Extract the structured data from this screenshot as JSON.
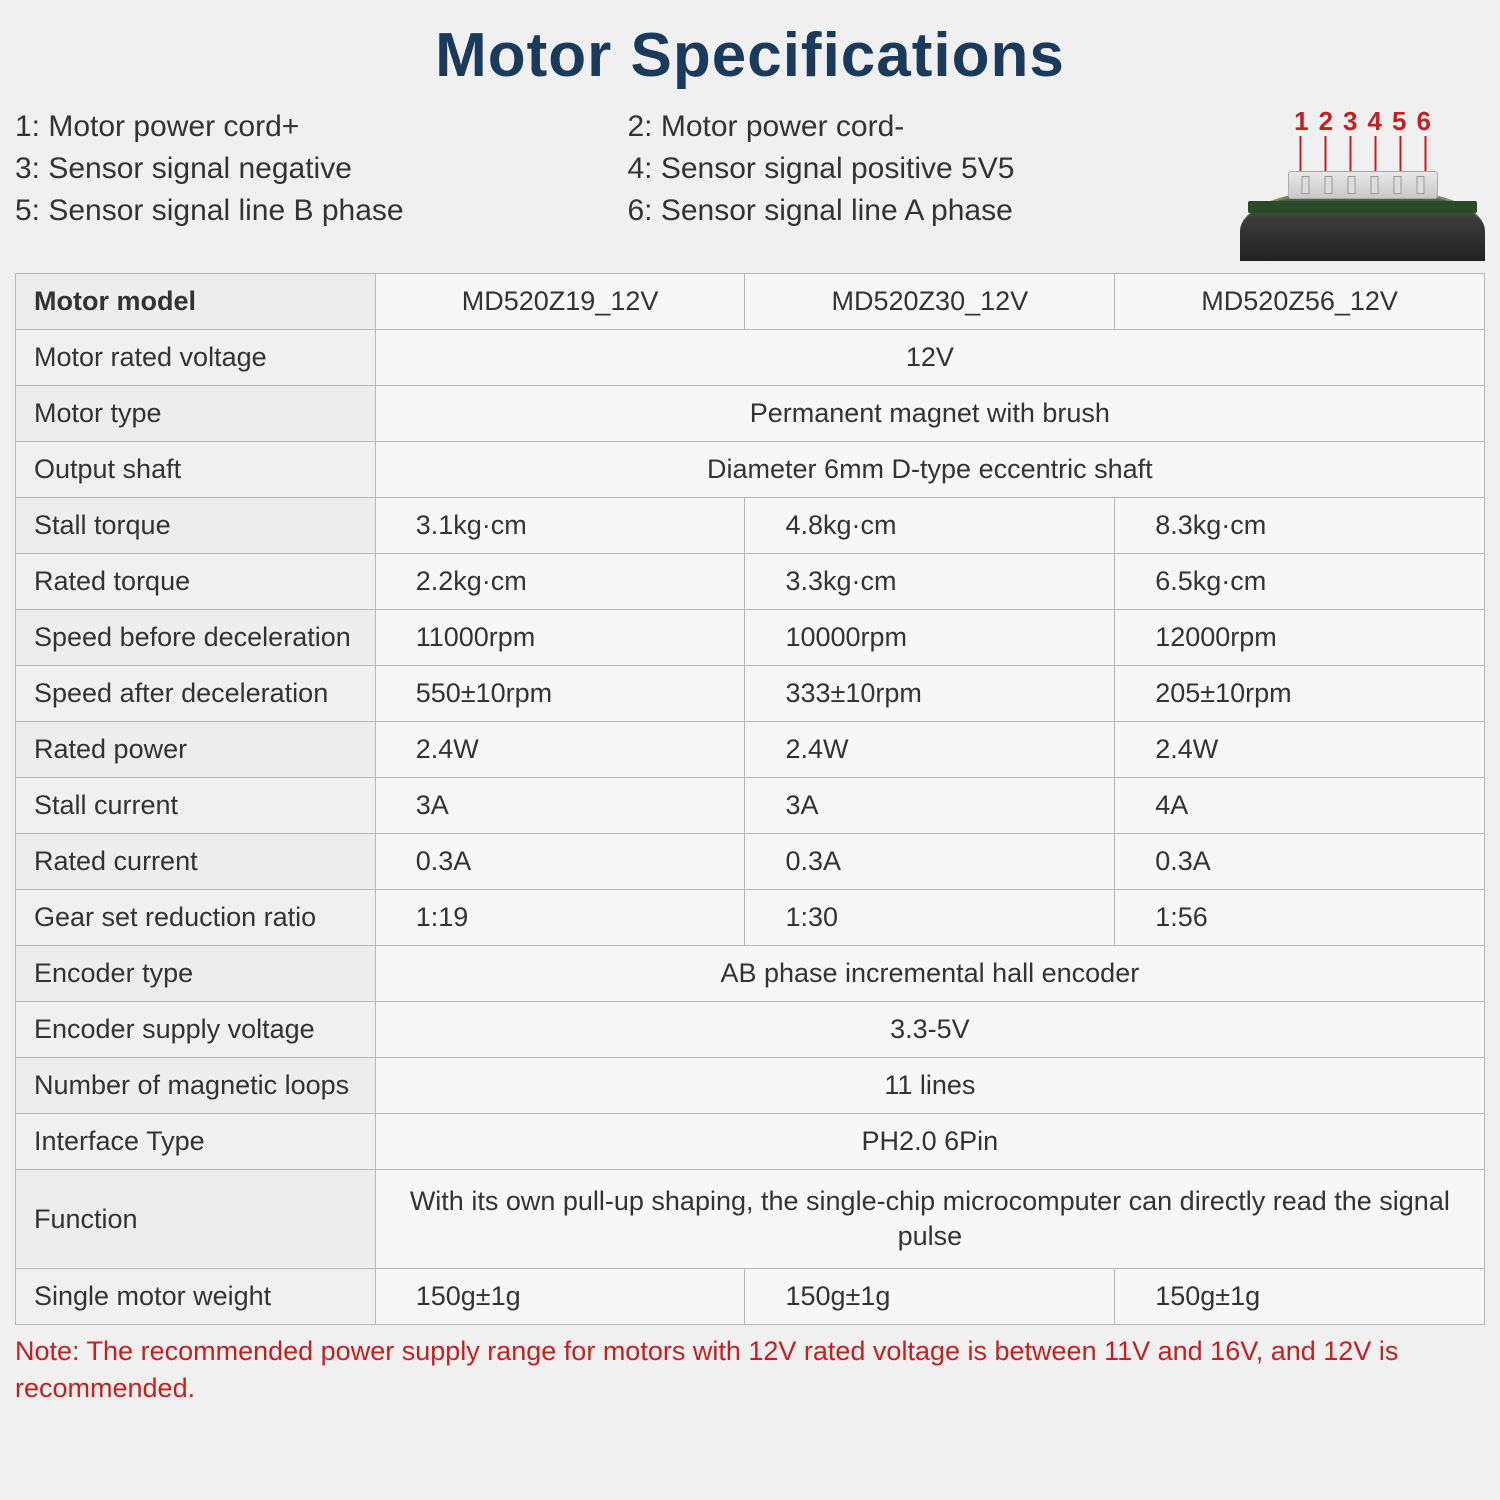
{
  "title": "Motor Specifications",
  "pin_defs": [
    "1: Motor power cord+",
    "2: Motor power cord-",
    "3: Sensor signal negative",
    "4: Sensor signal positive 5V5",
    "5: Sensor signal line B phase",
    "6: Sensor signal line A phase"
  ],
  "pin_numbers": [
    "1",
    "2",
    "3",
    "4",
    "5",
    "6"
  ],
  "pin_number_color": "#c91e1e",
  "columns": [
    "MD520Z19_12V",
    "MD520Z30_12V",
    "MD520Z56_12V"
  ],
  "rows": [
    {
      "label": "Motor model",
      "type": "header"
    },
    {
      "label": "Motor rated voltage",
      "merged": "12V"
    },
    {
      "label": "Motor type",
      "merged": "Permanent magnet with brush"
    },
    {
      "label": "Output shaft",
      "merged": "Diameter 6mm D-type eccentric shaft"
    },
    {
      "label": "Stall torque",
      "vals": [
        "3.1kg·cm",
        "4.8kg·cm",
        "8.3kg·cm"
      ]
    },
    {
      "label": "Rated torque",
      "vals": [
        "2.2kg·cm",
        "3.3kg·cm",
        "6.5kg·cm"
      ]
    },
    {
      "label": "Speed before deceleration",
      "vals": [
        "11000rpm",
        "10000rpm",
        "12000rpm"
      ]
    },
    {
      "label": "Speed after deceleration",
      "vals": [
        "550±10rpm",
        "333±10rpm",
        "205±10rpm"
      ]
    },
    {
      "label": "Rated power",
      "vals": [
        "2.4W",
        "2.4W",
        "2.4W"
      ]
    },
    {
      "label": "Stall current",
      "vals": [
        "3A",
        "3A",
        "4A"
      ]
    },
    {
      "label": "Rated current",
      "vals": [
        "0.3A",
        "0.3A",
        "0.3A"
      ]
    },
    {
      "label": "Gear set reduction ratio",
      "vals": [
        "1:19",
        "1:30",
        "1:56"
      ]
    },
    {
      "label": "Encoder type",
      "merged": "AB phase incremental hall encoder"
    },
    {
      "label": "Encoder supply voltage",
      "merged": "3.3-5V"
    },
    {
      "label": "Number of magnetic loops",
      "merged": "11 lines"
    },
    {
      "label": "Interface Type",
      "merged": "PH2.0 6Pin"
    },
    {
      "label": "Function",
      "merged": "With its own pull-up shaping, the single-chip microcomputer can directly read the signal pulse",
      "func": true
    },
    {
      "label": "Single motor weight",
      "vals": [
        "150g±1g",
        "150g±1g",
        "150g±1g"
      ]
    }
  ],
  "note": "Note: The recommended power supply range for motors with 12V rated voltage is between 11V and 16V, and 12V is recommended.",
  "colors": {
    "title": "#1a3a5c",
    "border": "#b8b8b8",
    "note": "#c91e1e",
    "bg": "#f0f0f0",
    "cell_bg": "#f7f7f7",
    "label_bg": "#ededed"
  },
  "font_sizes": {
    "title": 62,
    "pin_def": 30,
    "table": 27,
    "note": 27,
    "pin_number": 26
  }
}
